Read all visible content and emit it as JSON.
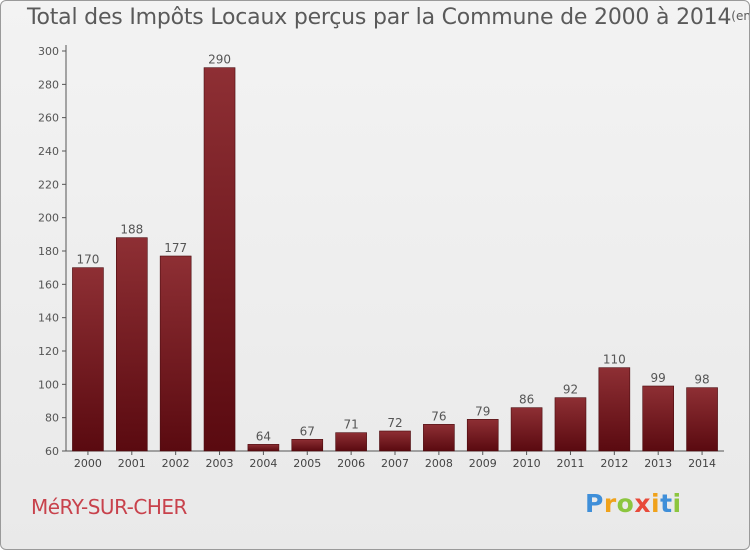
{
  "header": {
    "title": "Total des Impôts Locaux perçus par la Commune de 2000 à 2014",
    "unit": "(en milliers d'€)"
  },
  "footer": {
    "commune": "MéRY-SUR-CHER",
    "brand": [
      "P",
      "r",
      "o",
      "x",
      "i",
      "t",
      "i"
    ]
  },
  "colors": {
    "bar_top": "#8e2f34",
    "bar_bottom": "#5a0a10",
    "brand_blue": "#3f8fd9",
    "brand_orange": "#f0a21b",
    "brand_green": "#8cc63f",
    "brand_red": "#e84a3a",
    "commune": "#c8424c"
  },
  "chart_data": {
    "type": "bar",
    "categories": [
      "2000",
      "2001",
      "2002",
      "2003",
      "2004",
      "2005",
      "2006",
      "2007",
      "2008",
      "2009",
      "2010",
      "2011",
      "2012",
      "2013",
      "2014"
    ],
    "values": [
      170,
      188,
      177,
      290,
      64,
      67,
      71,
      72,
      76,
      79,
      86,
      92,
      110,
      99,
      98
    ],
    "data_labels": [
      "170",
      "188",
      "177",
      "290",
      "64",
      "67",
      "71",
      "72",
      "76",
      "79",
      "86",
      "92",
      "110",
      "99",
      "98"
    ],
    "title": "Total des Impôts Locaux perçus par la Commune de 2000 à 2014",
    "xlabel": "",
    "ylabel": "",
    "ylim": [
      60,
      300
    ],
    "yticks": [
      60,
      80,
      100,
      120,
      140,
      160,
      180,
      200,
      220,
      240,
      260,
      280,
      300
    ],
    "grid": false,
    "legend": "none"
  }
}
